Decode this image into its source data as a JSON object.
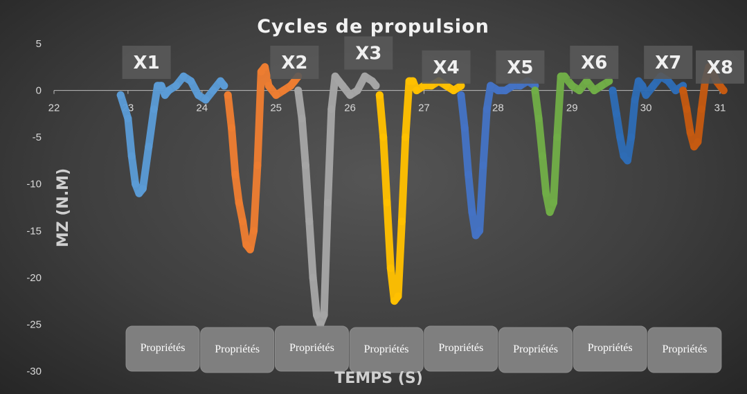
{
  "chart_data": {
    "type": "line",
    "title": "Cycles de propulsion",
    "xlabel": "TEMPS (S)",
    "ylabel": "MZ (N.M)",
    "xlim": [
      22,
      31
    ],
    "ylim": [
      -30,
      5
    ],
    "xticks": [
      22,
      23,
      24,
      25,
      26,
      27,
      28,
      29,
      30,
      31
    ],
    "yticks": [
      5,
      0,
      -5,
      -10,
      -15,
      -20,
      -25,
      -30
    ],
    "grid": false,
    "cycle_labels": [
      {
        "label": "X1",
        "x": 23.25,
        "y": 3
      },
      {
        "label": "X2",
        "x": 25.25,
        "y": 3
      },
      {
        "label": "X3",
        "x": 26.25,
        "y": 4
      },
      {
        "label": "X4",
        "x": 27.3,
        "y": 2.5
      },
      {
        "label": "X5",
        "x": 28.3,
        "y": 2.5
      },
      {
        "label": "X6",
        "x": 29.3,
        "y": 3
      },
      {
        "label": "X7",
        "x": 30.3,
        "y": 3
      },
      {
        "label": "X8",
        "x": 31.05,
        "y": 2.5
      }
    ],
    "property_buttons": [
      "Propriétés",
      "Propriétés",
      "Propriétés",
      "Propriétés",
      "Propriétés",
      "Propriétés",
      "Propriétés",
      "Propriétés"
    ],
    "series": [
      {
        "color": "#5b9bd5",
        "x": [
          22.9,
          23.0,
          23.05,
          23.1,
          23.15,
          23.2,
          23.28,
          23.35,
          23.4,
          23.45,
          23.5,
          23.55,
          23.65,
          23.75,
          23.85,
          23.95,
          24.05,
          24.15,
          24.25,
          24.3
        ],
        "y": [
          -0.5,
          -3,
          -7,
          -10,
          -11,
          -10.5,
          -6,
          -2,
          0.5,
          0.5,
          -0.5,
          0,
          0.5,
          1.5,
          1,
          -0.5,
          -1,
          0,
          1,
          0.5
        ]
      },
      {
        "color": "#ed7d31",
        "x": [
          24.35,
          24.4,
          24.45,
          24.5,
          24.55,
          24.6,
          24.65,
          24.7,
          24.75,
          24.8,
          24.85,
          24.9,
          25.0,
          25.1,
          25.2,
          25.25,
          25.3
        ],
        "y": [
          -0.5,
          -4,
          -9,
          -12,
          -14,
          -16.5,
          -17,
          -15,
          -8,
          2,
          2.5,
          0.5,
          -0.5,
          0,
          0.5,
          1,
          1.5
        ]
      },
      {
        "color": "#a5a5a5",
        "x": [
          25.3,
          25.35,
          25.4,
          25.45,
          25.5,
          25.55,
          25.6,
          25.65,
          25.7,
          25.75,
          25.8,
          25.85,
          25.9,
          26.0,
          26.1,
          26.2,
          26.3,
          26.35
        ],
        "y": [
          0,
          -3,
          -8,
          -14,
          -20,
          -24,
          -25,
          -24,
          -12,
          -2,
          1.5,
          1,
          0.5,
          -0.5,
          0,
          1.5,
          1,
          0.5
        ]
      },
      {
        "color": "#ffc000",
        "x": [
          26.4,
          26.45,
          26.5,
          26.55,
          26.6,
          26.65,
          26.7,
          26.75,
          26.8,
          26.85,
          26.9,
          27.0,
          27.1,
          27.2,
          27.3,
          27.4,
          27.5
        ],
        "y": [
          -0.5,
          -5,
          -12,
          -19,
          -22.5,
          -22,
          -14,
          -5,
          1,
          1,
          0,
          0.5,
          0.5,
          1,
          0.5,
          0,
          0.5
        ]
      },
      {
        "color": "#4472c4",
        "x": [
          27.5,
          27.55,
          27.6,
          27.65,
          27.7,
          27.75,
          27.8,
          27.85,
          27.9,
          28.0,
          28.1,
          28.2,
          28.3,
          28.4,
          28.5
        ],
        "y": [
          -0.5,
          -4,
          -9,
          -13,
          -15.5,
          -15,
          -8,
          -2,
          0.5,
          0,
          0,
          0.5,
          0.5,
          1,
          0.5
        ]
      },
      {
        "color": "#70ad47",
        "x": [
          28.5,
          28.55,
          28.6,
          28.65,
          28.7,
          28.75,
          28.8,
          28.85,
          28.9,
          29.0,
          29.1,
          29.2,
          29.3,
          29.4,
          29.5
        ],
        "y": [
          0,
          -3,
          -7,
          -11,
          -13,
          -12,
          -5,
          1.5,
          1.5,
          0.5,
          0,
          1,
          0,
          0.5,
          1
        ]
      },
      {
        "color": "#2e6cb5",
        "x": [
          29.55,
          29.6,
          29.65,
          29.7,
          29.75,
          29.8,
          29.85,
          29.9,
          29.95,
          30.0,
          30.1,
          30.2,
          30.3,
          30.4,
          30.5
        ],
        "y": [
          0,
          -2.5,
          -5,
          -7,
          -7.5,
          -5,
          -1,
          1,
          0.5,
          -0.5,
          0.5,
          1.5,
          1,
          0,
          0.5
        ]
      },
      {
        "color": "#c55a11",
        "x": [
          30.5,
          30.55,
          30.6,
          30.65,
          30.7,
          30.75,
          30.8,
          30.85,
          30.9,
          30.95,
          31.0,
          31.05
        ],
        "y": [
          0,
          -2,
          -4.5,
          -6,
          -5.5,
          -2,
          1,
          2.5,
          2,
          1,
          0.5,
          0
        ]
      }
    ]
  }
}
